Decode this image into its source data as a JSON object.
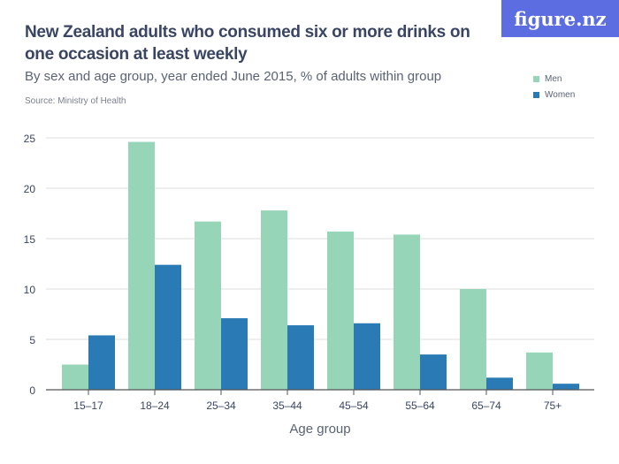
{
  "logo": "figure.nz",
  "chart_data": {
    "type": "bar",
    "title": "New Zealand adults who consumed six or more drinks on one occasion at least weekly",
    "subtitle": "By sex and age group, year ended June 2015, % of adults within group",
    "source": "Source: Ministry of Health",
    "xlabel": "Age group",
    "ylabel": "",
    "ylim": [
      0,
      25
    ],
    "yticks": [
      0,
      5,
      10,
      15,
      20,
      25
    ],
    "grid": true,
    "legend": "top-right",
    "categories": [
      "15–17",
      "18–24",
      "25–34",
      "35–44",
      "45–54",
      "55–64",
      "65–74",
      "75+"
    ],
    "series": [
      {
        "name": "Men",
        "color": "#97d5b9",
        "values": [
          2.5,
          24.6,
          16.7,
          17.8,
          15.7,
          15.4,
          10.0,
          3.7
        ]
      },
      {
        "name": "Women",
        "color": "#2a7ab5",
        "values": [
          5.4,
          12.4,
          7.1,
          6.4,
          6.6,
          3.5,
          1.2,
          0.6
        ]
      }
    ]
  }
}
